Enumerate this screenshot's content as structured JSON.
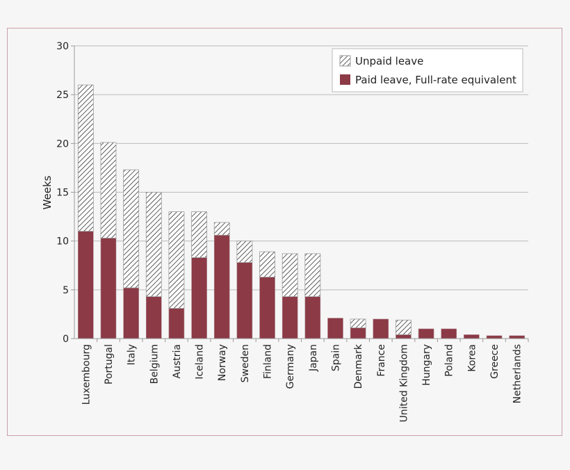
{
  "chart_data": {
    "type": "bar",
    "stacked": true,
    "title": "",
    "xlabel": "",
    "ylabel": "Weeks",
    "ylim": [
      0,
      30
    ],
    "yticks": [
      0,
      5,
      10,
      15,
      20,
      25,
      30
    ],
    "grid": true,
    "legend_position": "top-right",
    "categories": [
      "Luxembourg",
      "Portugal",
      "Italy",
      "Belgium",
      "Austria",
      "Iceland",
      "Norway",
      "Sweden",
      "Finland",
      "Germany",
      "Japan",
      "Spain",
      "Denmark",
      "France",
      "United Kingdom",
      "Hungary",
      "Poland",
      "Korea",
      "Greece",
      "Netherlands"
    ],
    "series": [
      {
        "name": "Paid leave, Full-rate equivalent",
        "color": "#8b3a46",
        "pattern": "solid",
        "values": [
          11.0,
          10.3,
          5.2,
          4.3,
          3.1,
          8.3,
          10.6,
          7.8,
          6.3,
          4.3,
          4.3,
          2.1,
          1.1,
          2.0,
          0.4,
          1.0,
          1.0,
          0.4,
          0.3,
          0.3
        ]
      },
      {
        "name": "Unpaid leave",
        "color": "#ffffff",
        "pattern": "diagonal-hatch",
        "values": [
          15.0,
          9.8,
          12.1,
          10.7,
          9.9,
          4.7,
          1.3,
          2.2,
          2.6,
          4.4,
          4.4,
          0,
          0.9,
          0,
          1.5,
          0,
          0,
          0,
          0,
          0
        ]
      }
    ],
    "legend_order": [
      "Unpaid leave",
      "Paid leave, Full-rate equivalent"
    ]
  }
}
